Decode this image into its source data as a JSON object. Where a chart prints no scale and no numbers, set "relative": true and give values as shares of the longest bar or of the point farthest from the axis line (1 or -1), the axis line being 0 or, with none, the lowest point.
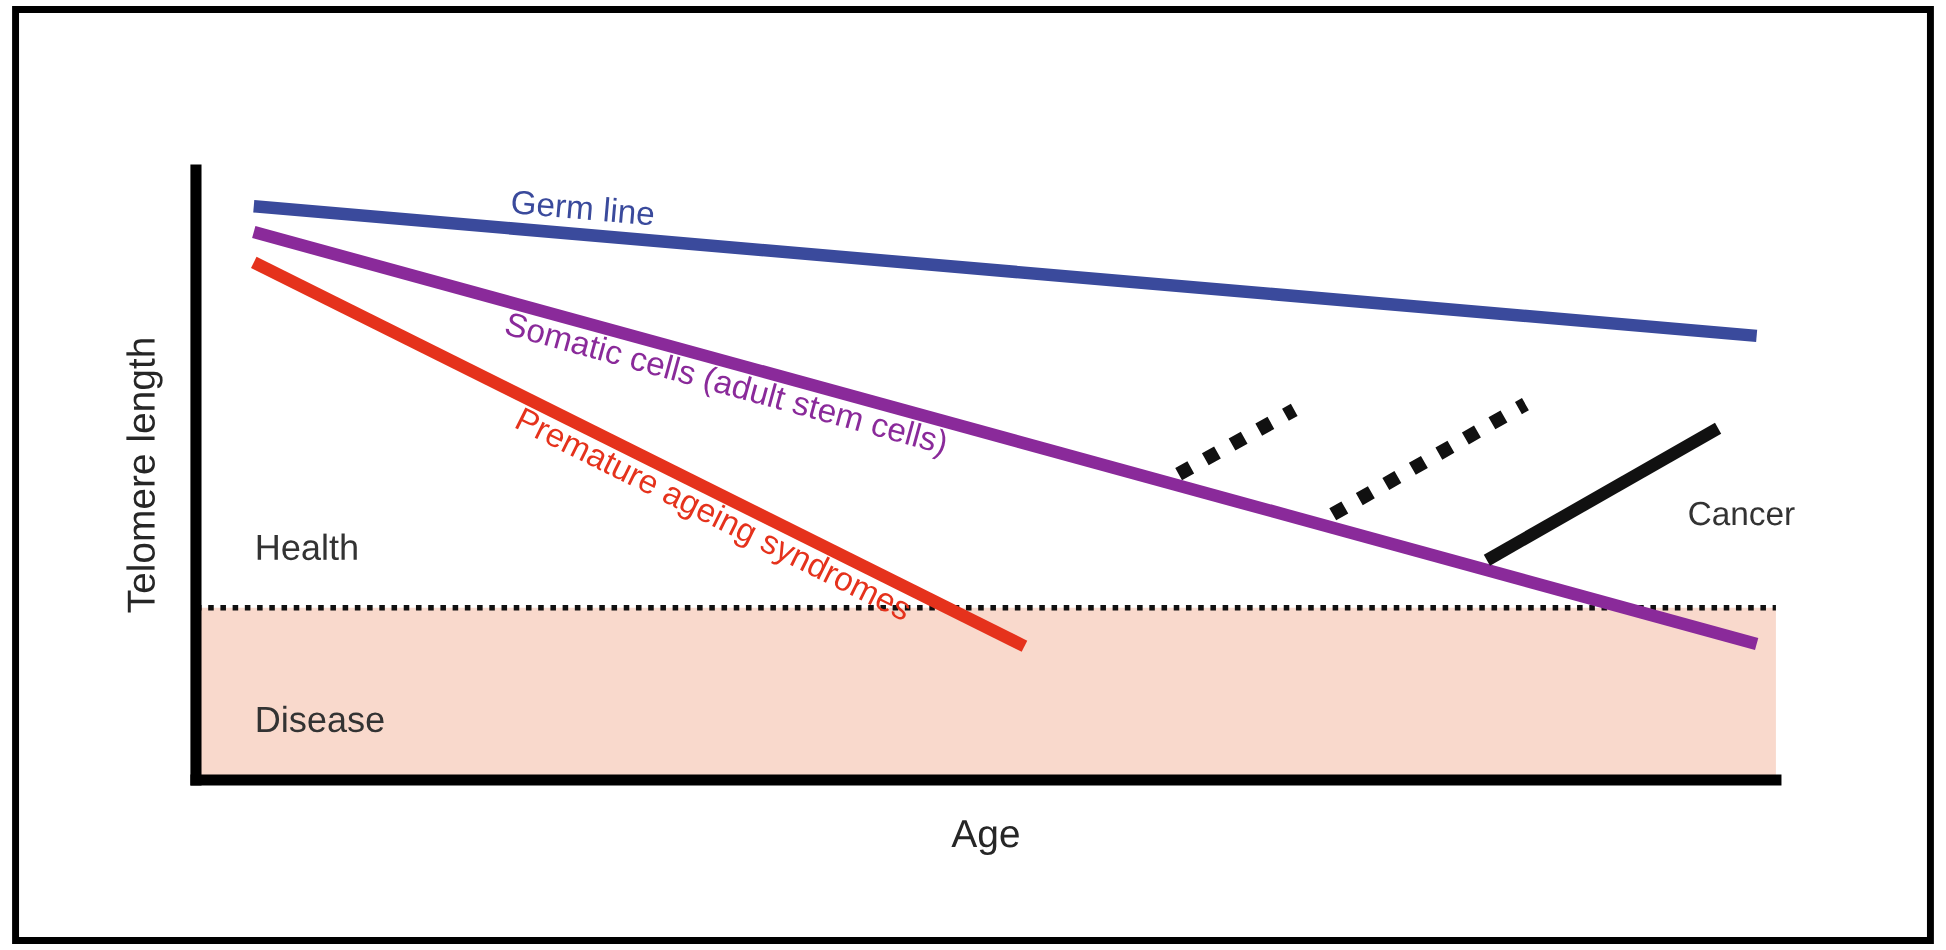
{
  "chart_data": {
    "type": "line",
    "relative": true,
    "xlabel": "Age",
    "ylabel": "Telomere length",
    "tick_labels": false,
    "grid": false,
    "legend": false,
    "categories": [
      null,
      null,
      null,
      null,
      null,
      null,
      null,
      null,
      null,
      null,
      null,
      null,
      null,
      null,
      null,
      null,
      null,
      null,
      null,
      null,
      null,
      null,
      null,
      null,
      null,
      null,
      null,
      null,
      null,
      null,
      null,
      null,
      null,
      null,
      null,
      null,
      null,
      null,
      null,
      null,
      null
    ],
    "series": [
      {
        "name": "Germ line",
        "color": "#3a4a9c",
        "values": [
          null,
          1,
          null,
          null,
          null,
          null,
          null,
          null,
          null,
          null,
          null,
          null,
          null,
          null,
          null,
          null,
          null,
          null,
          null,
          null,
          null,
          null,
          null,
          null,
          null,
          null,
          null,
          null,
          null,
          null,
          null,
          null,
          null,
          null,
          null,
          null,
          null,
          null,
          null,
          null,
          0.774
        ]
      },
      {
        "name": "Somatic cells (adult stem cells)",
        "color": "#8a2a9a",
        "values": [
          null,
          0.955,
          null,
          null,
          null,
          null,
          null,
          null,
          null,
          null,
          null,
          null,
          null,
          null,
          null,
          null,
          null,
          null,
          null,
          null,
          null,
          null,
          null,
          null,
          null,
          null,
          null,
          null,
          null,
          null,
          null,
          null,
          null,
          null,
          null,
          null,
          null,
          null,
          null,
          null,
          0.237
        ]
      },
      {
        "name": "Premature ageing syndromes",
        "color": "#e5321c",
        "values": [
          null,
          0.902,
          null,
          null,
          null,
          null,
          null,
          null,
          null,
          null,
          null,
          null,
          null,
          null,
          null,
          null,
          null,
          null,
          null,
          null,
          null,
          0.233,
          null,
          null,
          null,
          null,
          null,
          null,
          null,
          null,
          null,
          null,
          null,
          null,
          null,
          null,
          null,
          null,
          null,
          null,
          null
        ]
      },
      {
        "name": "Cancer",
        "color": "#111111",
        "values": [
          null,
          null,
          null,
          null,
          null,
          null,
          null,
          null,
          null,
          null,
          null,
          null,
          null,
          null,
          null,
          null,
          null,
          null,
          null,
          null,
          null,
          null,
          null,
          null,
          null,
          null,
          null,
          null,
          null,
          null,
          null,
          null,
          null,
          0.383,
          null,
          null,
          null,
          null,
          null,
          0.613,
          null
        ]
      },
      {
        "color": "#111111",
        "line_style": "dotted",
        "values": [
          null,
          null,
          null,
          null,
          null,
          null,
          null,
          null,
          null,
          null,
          null,
          null,
          null,
          null,
          null,
          null,
          null,
          null,
          null,
          null,
          null,
          null,
          null,
          null,
          null,
          0.533,
          null,
          null,
          0.645,
          null,
          null,
          null,
          null,
          null,
          null,
          null,
          null,
          null,
          null,
          null,
          null
        ]
      },
      {
        "color": "#111111",
        "line_style": "dotted",
        "values": [
          null,
          null,
          null,
          null,
          null,
          null,
          null,
          null,
          null,
          null,
          null,
          null,
          null,
          null,
          null,
          null,
          null,
          null,
          null,
          null,
          null,
          null,
          null,
          null,
          null,
          null,
          null,
          null,
          null,
          0.463,
          null,
          null,
          null,
          null,
          0.655,
          null,
          null,
          null,
          null,
          null,
          null
        ]
      }
    ],
    "ref_lines": [
      {
        "axis": "y",
        "value": 0.3,
        "label": "Health",
        "color": "#111111",
        "line_style": "dotted"
      }
    ],
    "bands": [
      {
        "axis": "y",
        "from": 0,
        "to": 0.3,
        "label": "Disease",
        "color": "#f9d9cc"
      }
    ]
  }
}
